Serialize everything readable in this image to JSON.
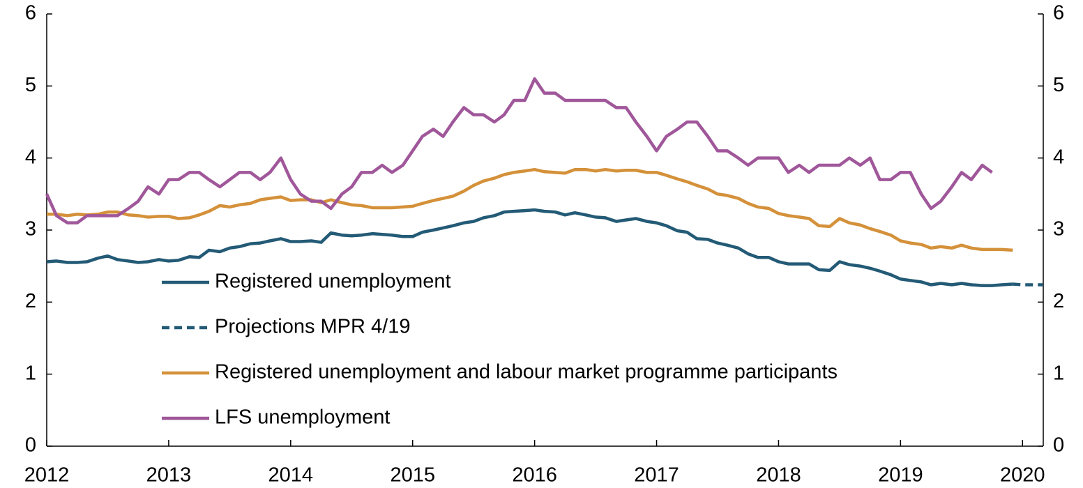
{
  "chart_data": {
    "type": "line",
    "x": [
      2012,
      2012.08,
      2012.17,
      2012.25,
      2012.33,
      2012.42,
      2012.5,
      2012.58,
      2012.67,
      2012.75,
      2012.83,
      2012.92,
      2013,
      2013.08,
      2013.17,
      2013.25,
      2013.33,
      2013.42,
      2013.5,
      2013.58,
      2013.67,
      2013.75,
      2013.83,
      2013.92,
      2014,
      2014.08,
      2014.17,
      2014.25,
      2014.33,
      2014.42,
      2014.5,
      2014.58,
      2014.67,
      2014.75,
      2014.83,
      2014.92,
      2015,
      2015.08,
      2015.17,
      2015.25,
      2015.33,
      2015.42,
      2015.5,
      2015.58,
      2015.67,
      2015.75,
      2015.83,
      2015.92,
      2016,
      2016.08,
      2016.17,
      2016.25,
      2016.33,
      2016.42,
      2016.5,
      2016.58,
      2016.67,
      2016.75,
      2016.83,
      2016.92,
      2017,
      2017.08,
      2017.17,
      2017.25,
      2017.33,
      2017.42,
      2017.5,
      2017.58,
      2017.67,
      2017.75,
      2017.83,
      2017.92,
      2018,
      2018.08,
      2018.17,
      2018.25,
      2018.33,
      2018.42,
      2018.5,
      2018.58,
      2018.67,
      2018.75,
      2018.83,
      2018.92,
      2019,
      2019.08,
      2019.17,
      2019.25,
      2019.33,
      2019.42,
      2019.5,
      2019.58,
      2019.67,
      2019.75,
      2019.83,
      2019.92,
      2020,
      2020.08,
      2020.17
    ],
    "xlim": [
      2012,
      2020.17
    ],
    "xticks": [
      2012,
      2013,
      2014,
      2015,
      2016,
      2017,
      2018,
      2019,
      2020
    ],
    "ylim": [
      0,
      6
    ],
    "yticks": [
      0,
      1,
      2,
      3,
      4,
      5,
      6
    ],
    "y2lim": [
      0,
      6
    ],
    "y2ticks": [
      0,
      1,
      2,
      3,
      4,
      5,
      6
    ],
    "series": [
      {
        "name": "Registered unemployment",
        "color": "#235a76",
        "dash": false,
        "values": [
          2.56,
          2.57,
          2.55,
          2.55,
          2.56,
          2.61,
          2.64,
          2.59,
          2.57,
          2.55,
          2.56,
          2.59,
          2.57,
          2.58,
          2.63,
          2.62,
          2.72,
          2.7,
          2.75,
          2.77,
          2.81,
          2.82,
          2.85,
          2.88,
          2.84,
          2.84,
          2.85,
          2.83,
          2.96,
          2.93,
          2.92,
          2.93,
          2.95,
          2.94,
          2.93,
          2.91,
          2.91,
          2.97,
          3.0,
          3.03,
          3.06,
          3.1,
          3.12,
          3.17,
          3.2,
          3.25,
          3.26,
          3.27,
          3.28,
          3.26,
          3.25,
          3.21,
          3.24,
          3.21,
          3.18,
          3.17,
          3.12,
          3.14,
          3.16,
          3.12,
          3.1,
          3.06,
          2.99,
          2.97,
          2.88,
          2.87,
          2.82,
          2.79,
          2.75,
          2.67,
          2.62,
          2.62,
          2.56,
          2.53,
          2.53,
          2.53,
          2.45,
          2.44,
          2.56,
          2.52,
          2.5,
          2.47,
          2.43,
          2.38,
          2.32,
          2.3,
          2.28,
          2.24,
          2.26,
          2.24,
          2.26,
          2.24,
          2.23,
          2.23,
          2.24,
          2.25,
          null,
          null,
          null
        ]
      },
      {
        "name": "Projections MPR 4/19",
        "color": "#235a76",
        "dash": true,
        "values": [
          null,
          null,
          null,
          null,
          null,
          null,
          null,
          null,
          null,
          null,
          null,
          null,
          null,
          null,
          null,
          null,
          null,
          null,
          null,
          null,
          null,
          null,
          null,
          null,
          null,
          null,
          null,
          null,
          null,
          null,
          null,
          null,
          null,
          null,
          null,
          null,
          null,
          null,
          null,
          null,
          null,
          null,
          null,
          null,
          null,
          null,
          null,
          null,
          null,
          null,
          null,
          null,
          null,
          null,
          null,
          null,
          null,
          null,
          null,
          null,
          null,
          null,
          null,
          null,
          null,
          null,
          null,
          null,
          null,
          null,
          null,
          null,
          null,
          null,
          null,
          null,
          null,
          null,
          null,
          null,
          null,
          null,
          null,
          null,
          null,
          null,
          null,
          null,
          null,
          null,
          null,
          null,
          null,
          null,
          null,
          2.25,
          2.24,
          2.24,
          2.24
        ]
      },
      {
        "name": "Registered unemployment and labour market programme participants",
        "color": "#d4913a",
        "dash": false,
        "values": [
          3.22,
          3.22,
          3.2,
          3.22,
          3.21,
          3.22,
          3.25,
          3.25,
          3.21,
          3.2,
          3.18,
          3.19,
          3.19,
          3.16,
          3.17,
          3.21,
          3.26,
          3.34,
          3.32,
          3.35,
          3.37,
          3.42,
          3.44,
          3.46,
          3.41,
          3.42,
          3.42,
          3.38,
          3.42,
          3.38,
          3.35,
          3.34,
          3.31,
          3.31,
          3.31,
          3.32,
          3.33,
          3.37,
          3.41,
          3.44,
          3.47,
          3.54,
          3.62,
          3.68,
          3.72,
          3.77,
          3.8,
          3.82,
          3.84,
          3.81,
          3.8,
          3.79,
          3.84,
          3.84,
          3.82,
          3.84,
          3.82,
          3.83,
          3.83,
          3.8,
          3.8,
          3.76,
          3.71,
          3.67,
          3.62,
          3.57,
          3.5,
          3.48,
          3.44,
          3.37,
          3.32,
          3.3,
          3.23,
          3.2,
          3.18,
          3.16,
          3.06,
          3.05,
          3.16,
          3.1,
          3.07,
          3.02,
          2.98,
          2.93,
          2.85,
          2.82,
          2.8,
          2.75,
          2.77,
          2.75,
          2.79,
          2.75,
          2.73,
          2.73,
          2.73,
          2.72,
          null,
          null,
          null
        ]
      },
      {
        "name": "LFS unemployment",
        "color": "#a0579a",
        "dash": false,
        "values": [
          3.5,
          3.2,
          3.1,
          3.1,
          3.2,
          3.2,
          3.2,
          3.2,
          3.3,
          3.4,
          3.6,
          3.5,
          3.7,
          3.7,
          3.8,
          3.8,
          3.7,
          3.6,
          3.7,
          3.8,
          3.8,
          3.7,
          3.8,
          4.0,
          3.7,
          3.5,
          3.4,
          3.4,
          3.3,
          3.5,
          3.6,
          3.8,
          3.8,
          3.9,
          3.8,
          3.9,
          4.1,
          4.3,
          4.4,
          4.3,
          4.5,
          4.7,
          4.6,
          4.6,
          4.5,
          4.6,
          4.8,
          4.8,
          5.1,
          4.9,
          4.9,
          4.8,
          4.8,
          4.8,
          4.8,
          4.8,
          4.7,
          4.7,
          4.5,
          4.3,
          4.1,
          4.3,
          4.4,
          4.5,
          4.5,
          4.3,
          4.1,
          4.1,
          4.0,
          3.9,
          4.0,
          4.0,
          4.0,
          3.8,
          3.9,
          3.8,
          3.9,
          3.9,
          3.9,
          4.0,
          3.9,
          4.0,
          3.7,
          3.7,
          3.8,
          3.8,
          3.5,
          3.3,
          3.4,
          3.6,
          3.8,
          3.7,
          3.9,
          3.8,
          null,
          null,
          null,
          null,
          null
        ]
      }
    ]
  }
}
